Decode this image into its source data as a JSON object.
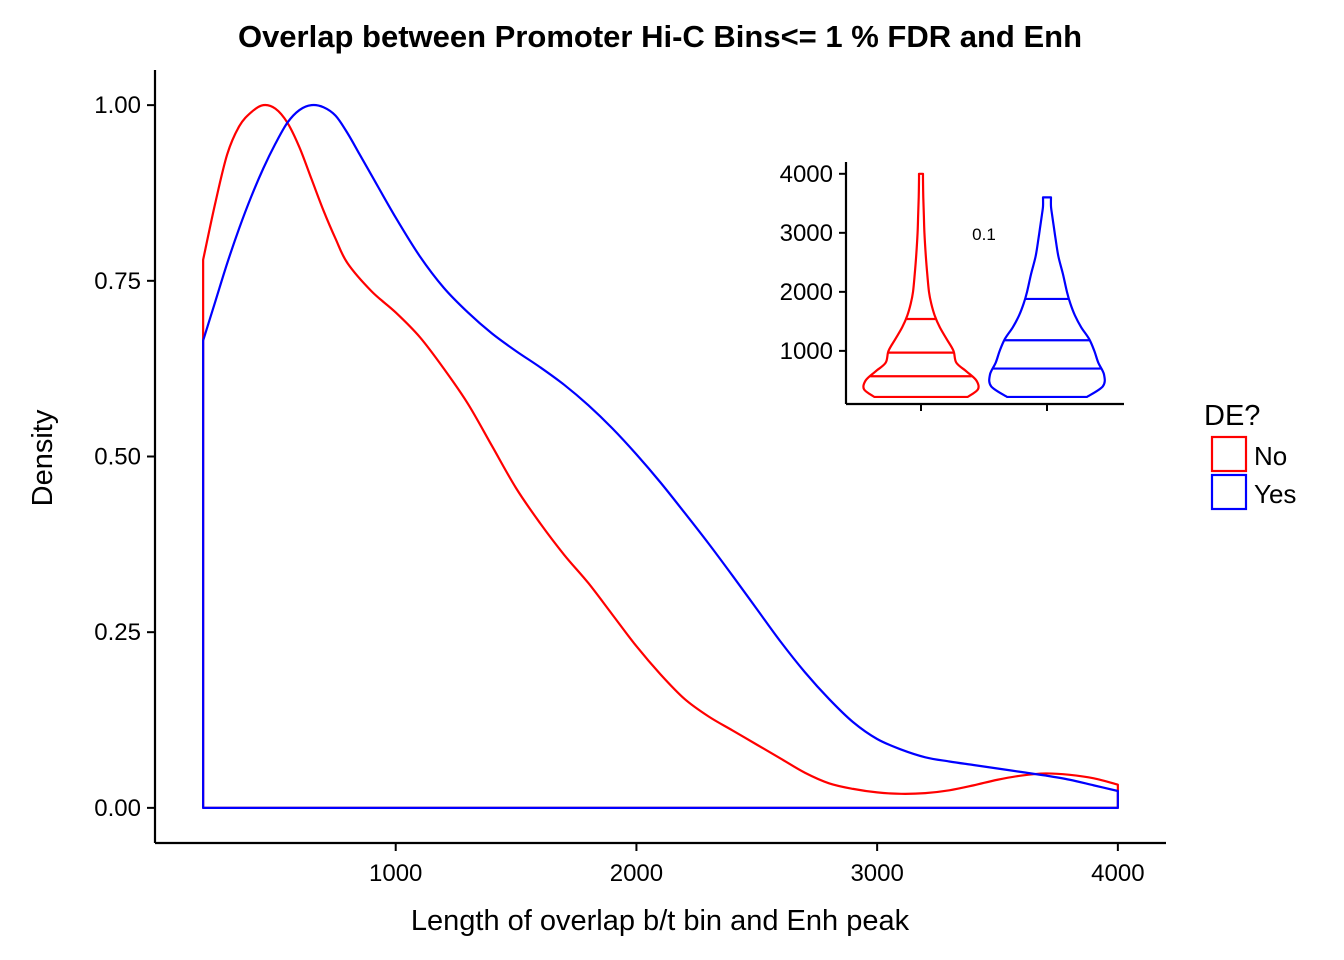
{
  "chart_data": [
    {
      "type": "line",
      "subtype": "density",
      "title": "Overlap between Promoter Hi-C Bins<= 1 % FDR and Enh",
      "xlabel": "Length of overlap b/t bin and Enh peak",
      "ylabel": "Density",
      "xlim": [
        0,
        4200
      ],
      "ylim": [
        -0.05,
        1.05
      ],
      "x_ticks": [
        1000,
        2000,
        3000,
        4000
      ],
      "x_tick_labels": [
        "1000",
        "2000",
        "3000",
        "4000"
      ],
      "y_ticks": [
        0,
        0.25,
        0.5,
        0.75,
        1.0
      ],
      "y_tick_labels": [
        "0.00",
        "0.25",
        "0.50",
        "0.75",
        "1.00"
      ],
      "grid": false,
      "legend": {
        "title": "DE?",
        "position": "right",
        "entries": [
          {
            "label": "No",
            "color": "#ff0000"
          },
          {
            "label": "Yes",
            "color": "#0000ff"
          }
        ]
      },
      "series": [
        {
          "name": "No",
          "color": "#ff0000",
          "points": [
            [
              200,
              0.78
            ],
            [
              250,
              0.86
            ],
            [
              300,
              0.93
            ],
            [
              350,
              0.97
            ],
            [
              400,
              0.99
            ],
            [
              450,
              1.0
            ],
            [
              500,
              0.995
            ],
            [
              550,
              0.975
            ],
            [
              600,
              0.94
            ],
            [
              650,
              0.895
            ],
            [
              700,
              0.85
            ],
            [
              750,
              0.81
            ],
            [
              800,
              0.775
            ],
            [
              900,
              0.735
            ],
            [
              1000,
              0.705
            ],
            [
              1100,
              0.67
            ],
            [
              1200,
              0.625
            ],
            [
              1300,
              0.575
            ],
            [
              1400,
              0.515
            ],
            [
              1500,
              0.455
            ],
            [
              1600,
              0.405
            ],
            [
              1700,
              0.36
            ],
            [
              1800,
              0.32
            ],
            [
              1900,
              0.275
            ],
            [
              2000,
              0.23
            ],
            [
              2100,
              0.19
            ],
            [
              2200,
              0.155
            ],
            [
              2300,
              0.13
            ],
            [
              2400,
              0.11
            ],
            [
              2500,
              0.09
            ],
            [
              2600,
              0.07
            ],
            [
              2700,
              0.05
            ],
            [
              2800,
              0.035
            ],
            [
              2900,
              0.027
            ],
            [
              3000,
              0.022
            ],
            [
              3100,
              0.02
            ],
            [
              3200,
              0.021
            ],
            [
              3300,
              0.025
            ],
            [
              3400,
              0.032
            ],
            [
              3500,
              0.04
            ],
            [
              3600,
              0.046
            ],
            [
              3700,
              0.049
            ],
            [
              3800,
              0.047
            ],
            [
              3900,
              0.042
            ],
            [
              4000,
              0.033
            ]
          ]
        },
        {
          "name": "Yes",
          "color": "#0000ff",
          "points": [
            [
              200,
              0.665
            ],
            [
              250,
              0.72
            ],
            [
              300,
              0.775
            ],
            [
              350,
              0.825
            ],
            [
              400,
              0.87
            ],
            [
              450,
              0.91
            ],
            [
              500,
              0.945
            ],
            [
              550,
              0.975
            ],
            [
              600,
              0.993
            ],
            [
              650,
              1.0
            ],
            [
              700,
              0.997
            ],
            [
              750,
              0.985
            ],
            [
              800,
              0.96
            ],
            [
              850,
              0.93
            ],
            [
              900,
              0.9
            ],
            [
              1000,
              0.84
            ],
            [
              1100,
              0.785
            ],
            [
              1200,
              0.74
            ],
            [
              1300,
              0.705
            ],
            [
              1400,
              0.675
            ],
            [
              1500,
              0.65
            ],
            [
              1600,
              0.627
            ],
            [
              1700,
              0.602
            ],
            [
              1800,
              0.573
            ],
            [
              1900,
              0.54
            ],
            [
              2000,
              0.503
            ],
            [
              2100,
              0.463
            ],
            [
              2200,
              0.42
            ],
            [
              2300,
              0.376
            ],
            [
              2400,
              0.33
            ],
            [
              2500,
              0.283
            ],
            [
              2600,
              0.236
            ],
            [
              2700,
              0.193
            ],
            [
              2800,
              0.155
            ],
            [
              2900,
              0.122
            ],
            [
              3000,
              0.098
            ],
            [
              3100,
              0.083
            ],
            [
              3200,
              0.072
            ],
            [
              3300,
              0.066
            ],
            [
              3400,
              0.061
            ],
            [
              3500,
              0.056
            ],
            [
              3600,
              0.051
            ],
            [
              3700,
              0.046
            ],
            [
              3800,
              0.04
            ],
            [
              3900,
              0.032
            ],
            [
              4000,
              0.024
            ]
          ]
        }
      ]
    },
    {
      "type": "violin",
      "position": "inset-top-right",
      "xlabel": "",
      "ylabel": "",
      "ylim": [
        100,
        4200
      ],
      "y_ticks": [
        1000,
        2000,
        3000,
        4000
      ],
      "y_tick_labels": [
        "1000",
        "2000",
        "3000",
        "4000"
      ],
      "grid": false,
      "annotation": "0.1",
      "series": [
        {
          "name": "No",
          "color": "#ff0000",
          "quantiles": [
            570,
            970,
            1540
          ],
          "min": 220,
          "max": 4000,
          "profile": [
            [
              220,
              0.82
            ],
            [
              350,
              1.0
            ],
            [
              500,
              0.97
            ],
            [
              650,
              0.8
            ],
            [
              800,
              0.62
            ],
            [
              1000,
              0.57
            ],
            [
              1200,
              0.45
            ],
            [
              1400,
              0.33
            ],
            [
              1600,
              0.24
            ],
            [
              1800,
              0.18
            ],
            [
              2000,
              0.14
            ],
            [
              2300,
              0.11
            ],
            [
              2600,
              0.085
            ],
            [
              3000,
              0.06
            ],
            [
              3300,
              0.05
            ],
            [
              3600,
              0.04
            ],
            [
              3900,
              0.035
            ],
            [
              4000,
              0.035
            ]
          ]
        },
        {
          "name": "Yes",
          "color": "#0000ff",
          "quantiles": [
            700,
            1180,
            1880
          ],
          "min": 220,
          "max": 3600,
          "profile": [
            [
              220,
              0.7
            ],
            [
              400,
              0.98
            ],
            [
              600,
              1.0
            ],
            [
              800,
              0.9
            ],
            [
              1000,
              0.83
            ],
            [
              1200,
              0.74
            ],
            [
              1400,
              0.6
            ],
            [
              1600,
              0.49
            ],
            [
              1800,
              0.41
            ],
            [
              2000,
              0.35
            ],
            [
              2300,
              0.28
            ],
            [
              2600,
              0.2
            ],
            [
              2900,
              0.15
            ],
            [
              3100,
              0.12
            ],
            [
              3300,
              0.09
            ],
            [
              3450,
              0.07
            ],
            [
              3600,
              0.07
            ]
          ]
        }
      ]
    }
  ]
}
